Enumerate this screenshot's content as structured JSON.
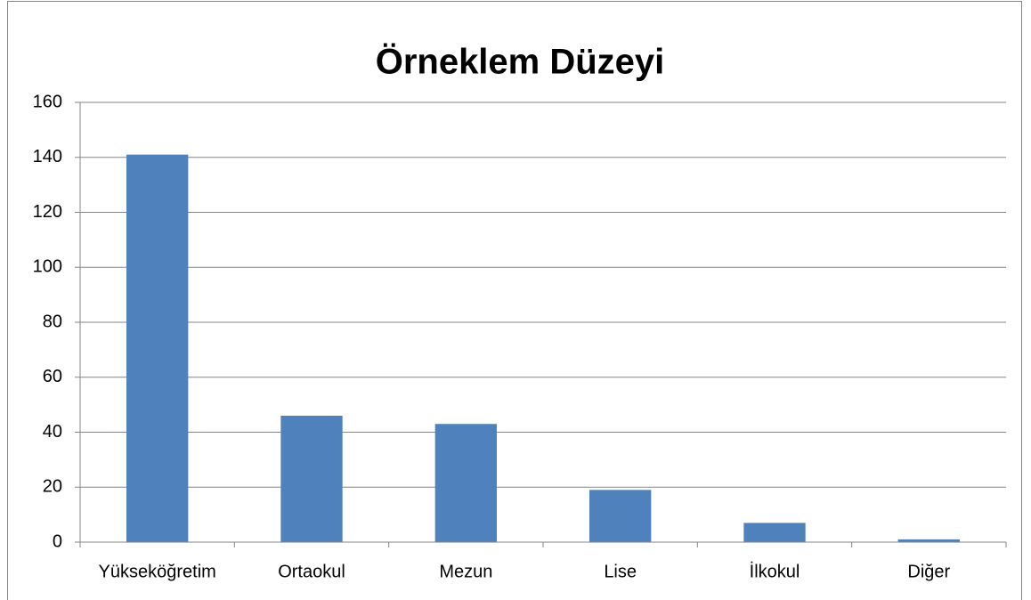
{
  "chart_data": {
    "type": "bar",
    "title": "Örneklem Düzeyi",
    "categories": [
      "Yükseköğretim",
      "Ortaokul",
      "Mezun",
      "Lise",
      "İlkokul",
      "Diğer"
    ],
    "values": [
      141,
      46,
      43,
      19,
      7,
      1
    ],
    "color": "#4f81bd",
    "ylim": [
      0,
      160
    ],
    "yticks": [
      0,
      20,
      40,
      60,
      80,
      100,
      120,
      140,
      160
    ],
    "grid": true
  }
}
